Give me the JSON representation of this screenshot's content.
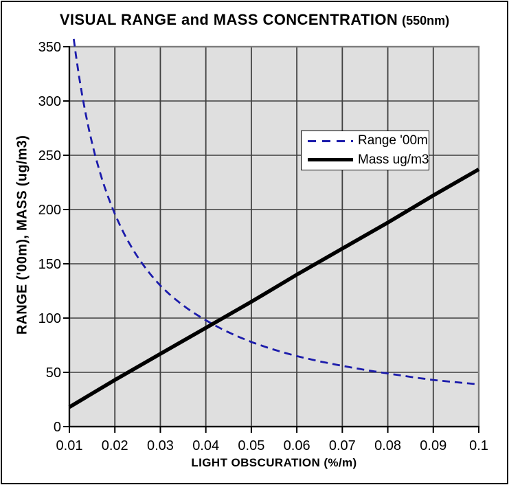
{
  "chart_data": {
    "type": "line",
    "title": "VISUAL RANGE and MASS CONCENTRATION",
    "title_suffix": "(550nm)",
    "xlabel": "LIGHT OBSCURATION (%/m)",
    "ylabel": "RANGE ('00m), MASS (ug/m3)",
    "xlim": [
      0.01,
      0.1
    ],
    "ylim": [
      0,
      350
    ],
    "grid": true,
    "legend_position": "inside-upper-right",
    "plot_bg": "#dfdfdf",
    "grid_color": "#3f3f3f",
    "frame_color": "#7d7d7d",
    "axis_color": "#000000",
    "x_ticks": [
      "0.01",
      "0.02",
      "0.03",
      "0.04",
      "0.05",
      "0.06",
      "0.07",
      "0.08",
      "0.09",
      "0.1"
    ],
    "y_ticks": [
      0,
      50,
      100,
      150,
      200,
      250,
      300,
      350
    ],
    "x": [
      0.01,
      0.02,
      0.03,
      0.04,
      0.05,
      0.06,
      0.07,
      0.08,
      0.09,
      0.1
    ],
    "series": [
      {
        "name": "Range '00m",
        "values": [
          391,
          196,
          130,
          98,
          78,
          65,
          56,
          49,
          43,
          39
        ],
        "color": "#1b1bab",
        "line_style": "dashed",
        "interpolation": "hyperbolic"
      },
      {
        "name": "Mass ug/m3",
        "values": [
          18,
          43,
          67,
          91,
          115,
          140,
          164,
          188,
          213,
          237
        ],
        "color": "#000000",
        "line_style": "solid",
        "interpolation": "linear"
      }
    ]
  }
}
